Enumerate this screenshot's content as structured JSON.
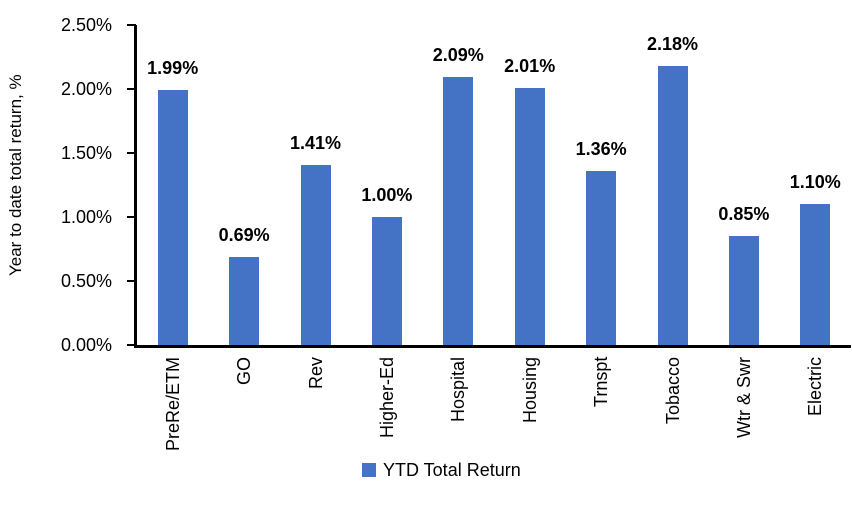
{
  "chart_data": {
    "type": "bar",
    "title": "",
    "xlabel": "",
    "ylabel": "Year to date total return, %",
    "categories": [
      "PreRe/ETM",
      "GO",
      "Rev",
      "Higher-Ed",
      "Hospital",
      "Housing",
      "Trnspt",
      "Tobacco",
      "Wtr & Swr",
      "Electric"
    ],
    "values": [
      1.99,
      0.69,
      1.41,
      1.0,
      2.09,
      2.01,
      1.36,
      2.18,
      0.85,
      1.1
    ],
    "data_labels": [
      "1.99%",
      "0.69%",
      "1.41%",
      "1.00%",
      "2.09%",
      "2.01%",
      "1.36%",
      "2.18%",
      "0.85%",
      "1.10%"
    ],
    "yticks": [
      {
        "value": 0.0,
        "label": "0.00%"
      },
      {
        "value": 0.5,
        "label": "0.50%"
      },
      {
        "value": 1.0,
        "label": "1.00%"
      },
      {
        "value": 1.5,
        "label": "1.50%"
      },
      {
        "value": 2.0,
        "label": "2.00%"
      },
      {
        "value": 2.5,
        "label": "2.50%"
      }
    ],
    "ylim": [
      0,
      2.5
    ],
    "grid": false,
    "bar_color": "#4472C4",
    "axis_color": "#000000",
    "legend": {
      "label": "YTD Total Return",
      "position": "bottom"
    }
  }
}
